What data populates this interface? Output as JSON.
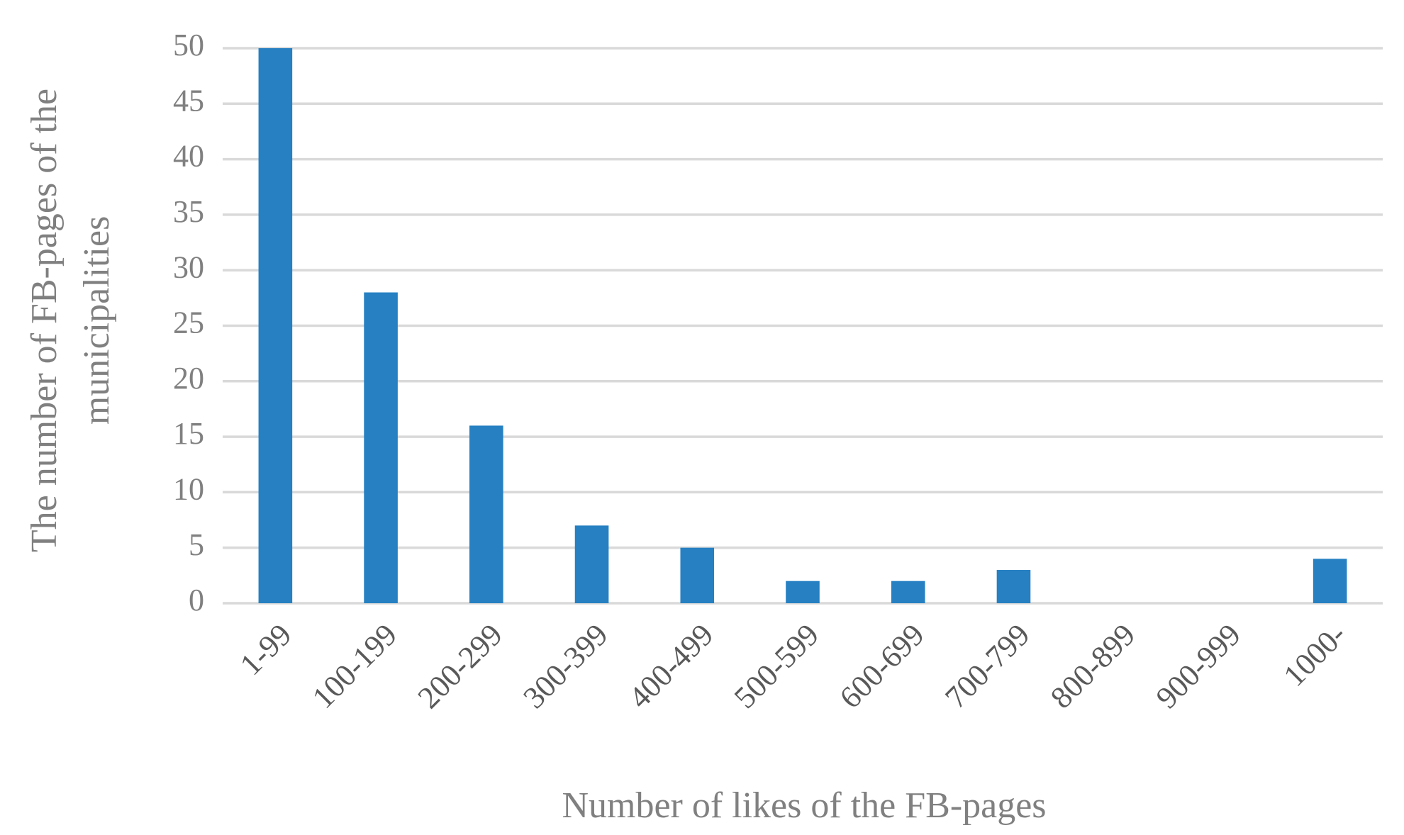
{
  "chart_data": {
    "type": "bar",
    "xlabel": "Number of likes of the FB-pages",
    "ylabel": [
      "The number of FB-pages of the",
      "municipalities"
    ],
    "categories": [
      "1-99",
      "100-199",
      "200-299",
      "300-399",
      "400-499",
      "500-599",
      "600-699",
      "700-799",
      "800-899",
      "900-999",
      "1000-"
    ],
    "values": [
      50,
      28,
      16,
      7,
      5,
      2,
      2,
      3,
      0,
      0,
      4
    ],
    "color": "#2680c2",
    "ylim": [
      0,
      50
    ],
    "yticks": [
      0,
      5,
      10,
      15,
      20,
      25,
      30,
      35,
      40,
      45,
      50
    ],
    "grid": true
  }
}
